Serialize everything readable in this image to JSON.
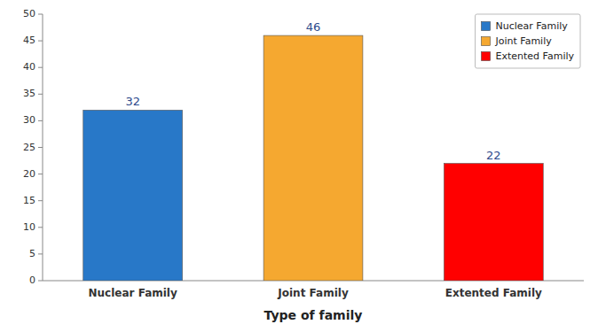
{
  "chart_data": {
    "type": "bar",
    "categories": [
      "Nuclear Family",
      "Joint Family",
      "Extented Family"
    ],
    "values": [
      32,
      46,
      22
    ],
    "colors": [
      "#2878C8",
      "#F5A830",
      "#FF0000"
    ],
    "xlabel": "Type of family",
    "ylim": [
      0,
      50
    ],
    "yticks": [
      0,
      5,
      10,
      15,
      20,
      25,
      30,
      35,
      40,
      45,
      50
    ],
    "data_labels": true,
    "legend": "upper right",
    "grid": false
  }
}
